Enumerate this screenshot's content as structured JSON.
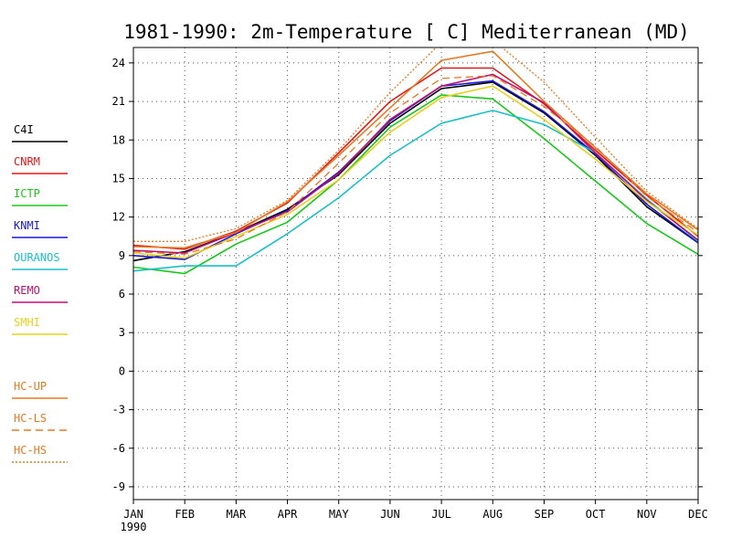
{
  "chart_data": {
    "type": "line",
    "title": "1981-1990: 2m-Temperature [  C] Mediterranean (MD)",
    "xlabel": "",
    "ylabel": "",
    "categories": [
      "JAN",
      "FEB",
      "MAR",
      "APR",
      "MAY",
      "JUN",
      "JUL",
      "AUG",
      "SEP",
      "OCT",
      "NOV",
      "DEC"
    ],
    "year_label": "1990",
    "yticks": [
      24,
      21,
      18,
      15,
      12,
      9,
      6,
      3,
      0,
      -3,
      -6,
      -9
    ],
    "ylim": [
      -10,
      25.2
    ],
    "grid": true,
    "legend_position": "left",
    "series": [
      {
        "name": "C4I",
        "color": "#000000",
        "dash": "solid",
        "values": [
          8.6,
          9.3,
          10.8,
          12.6,
          15.3,
          19.3,
          22.0,
          22.5,
          20.1,
          16.8,
          12.8,
          10.0
        ]
      },
      {
        "name": "CNRM",
        "color": "#e01818",
        "dash": "solid",
        "values": [
          9.8,
          9.5,
          10.9,
          13.1,
          17.0,
          21.0,
          23.6,
          23.6,
          20.8,
          17.2,
          13.7,
          10.5
        ]
      },
      {
        "name": "ICTP",
        "color": "#18c818",
        "dash": "solid",
        "values": [
          8.1,
          7.6,
          9.9,
          11.6,
          14.9,
          19.0,
          21.5,
          21.2,
          18.1,
          14.8,
          11.5,
          9.1
        ]
      },
      {
        "name": "KNMI",
        "color": "#1818d8",
        "dash": "solid",
        "values": [
          9.0,
          8.7,
          10.7,
          12.5,
          15.5,
          19.5,
          22.2,
          22.6,
          20.2,
          16.9,
          13.0,
          10.0
        ]
      },
      {
        "name": "OURANOS",
        "color": "#18c0c8",
        "dash": "solid",
        "values": [
          7.8,
          8.2,
          8.2,
          10.7,
          13.5,
          16.8,
          19.3,
          20.3,
          19.2,
          17.0,
          13.4,
          10.1
        ]
      },
      {
        "name": "REMO",
        "color": "#c01070",
        "dash": "solid",
        "values": [
          9.4,
          9.2,
          10.8,
          12.4,
          15.4,
          19.6,
          22.2,
          23.1,
          20.9,
          17.0,
          13.3,
          10.2
        ]
      },
      {
        "name": "SMHI",
        "color": "#e8d020",
        "dash": "solid",
        "values": [
          9.2,
          8.8,
          10.5,
          12.2,
          14.9,
          18.6,
          21.3,
          22.2,
          19.6,
          16.5,
          13.2,
          10.6
        ]
      },
      {
        "name": "HC-UP",
        "color": "#e87820",
        "dash": "solid",
        "values": [
          9.7,
          9.6,
          10.8,
          13.2,
          16.8,
          20.5,
          24.2,
          24.9,
          21.0,
          17.4,
          13.8,
          11.0
        ]
      },
      {
        "name": "HC-LS",
        "color": "#e87820",
        "dash": "dashed",
        "values": [
          9.3,
          9.1,
          10.3,
          12.4,
          16.2,
          20.1,
          22.8,
          23.0,
          20.6,
          17.5,
          13.6,
          10.8
        ]
      },
      {
        "name": "HC-HS",
        "color": "#e87820",
        "dash": "dotted",
        "values": [
          10.1,
          10.1,
          11.1,
          13.3,
          17.2,
          21.7,
          25.6,
          25.8,
          22.5,
          18.2,
          14.0,
          11.1
        ]
      }
    ]
  }
}
